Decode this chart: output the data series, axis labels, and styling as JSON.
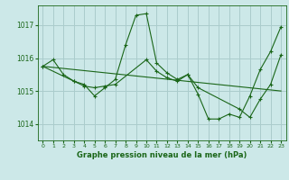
{
  "background_color": "#cce8e8",
  "grid_color": "#aacccc",
  "line_color": "#1a6618",
  "title": "Graphe pression niveau de la mer (hPa)",
  "ylim": [
    1013.5,
    1017.6
  ],
  "xlim": [
    -0.5,
    23.5
  ],
  "yticks": [
    1014,
    1015,
    1016,
    1017
  ],
  "xticks": [
    0,
    1,
    2,
    3,
    4,
    5,
    6,
    7,
    8,
    9,
    10,
    11,
    12,
    13,
    14,
    15,
    16,
    17,
    18,
    19,
    20,
    21,
    22,
    23
  ],
  "series1_x": [
    0,
    1,
    2,
    3,
    4,
    5,
    6,
    7,
    8,
    9,
    10,
    11,
    12,
    13,
    14,
    15,
    16,
    17,
    18,
    19,
    20,
    21,
    22,
    23
  ],
  "series1_y": [
    1015.75,
    1015.95,
    1015.5,
    1015.3,
    1015.2,
    1014.85,
    1015.1,
    1015.35,
    1016.4,
    1017.3,
    1017.35,
    1015.85,
    1015.55,
    1015.35,
    1015.5,
    1014.9,
    1014.15,
    1014.15,
    1014.3,
    1014.2,
    1014.85,
    1015.65,
    1016.2,
    1016.95
  ],
  "series2_x": [
    0,
    3,
    4,
    5,
    6,
    7,
    10,
    11,
    12,
    13,
    14,
    15,
    19,
    20,
    21,
    22,
    23
  ],
  "series2_y": [
    1015.75,
    1015.3,
    1015.15,
    1015.1,
    1015.15,
    1015.2,
    1015.95,
    1015.6,
    1015.4,
    1015.3,
    1015.5,
    1015.1,
    1014.45,
    1014.2,
    1014.75,
    1015.2,
    1016.1
  ],
  "series3_x": [
    0,
    23
  ],
  "series3_y": [
    1015.75,
    1015.0
  ]
}
